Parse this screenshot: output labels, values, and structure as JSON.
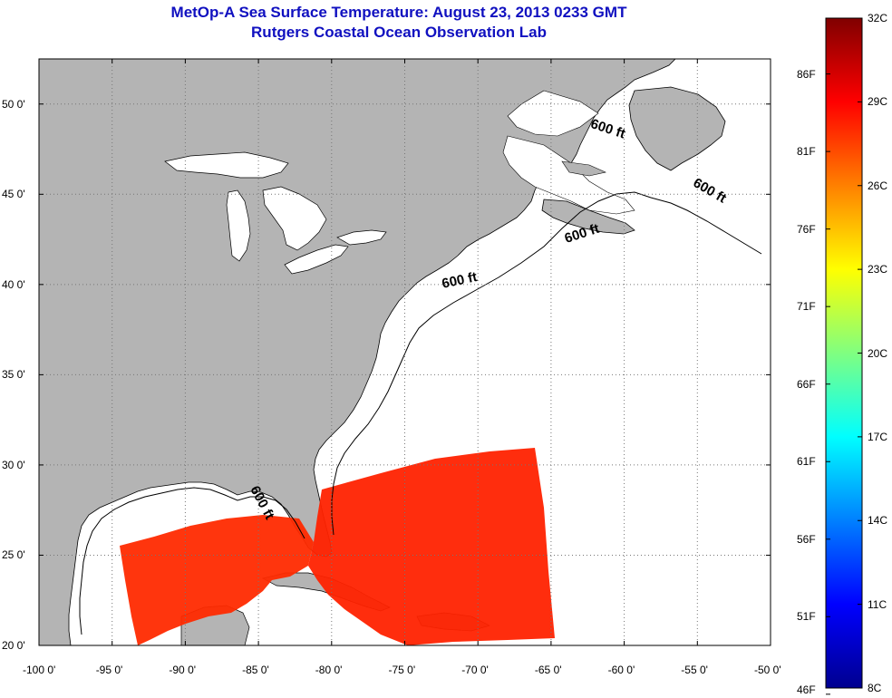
{
  "title": {
    "line1": "MetOp-A Sea Surface Temperature:  August 23, 2013 0233 GMT",
    "line2": "Rutgers Coastal Ocean Observation Lab"
  },
  "map": {
    "lon_range": [
      -100,
      -50
    ],
    "lat_range": [
      20,
      52.5
    ],
    "lon_ticks": [
      {
        "value": -100,
        "label": "-100 0'"
      },
      {
        "value": -95,
        "label": "-95 0'"
      },
      {
        "value": -90,
        "label": "-90 0'"
      },
      {
        "value": -85,
        "label": "-85 0'"
      },
      {
        "value": -80,
        "label": "-80 0'"
      },
      {
        "value": -75,
        "label": "-75 0'"
      },
      {
        "value": -70,
        "label": "-70 0'"
      },
      {
        "value": -65,
        "label": "-65 0'"
      },
      {
        "value": -60,
        "label": "-60 0'"
      },
      {
        "value": -55,
        "label": "-55 0'"
      },
      {
        "value": -50,
        "label": "-50 0'"
      }
    ],
    "lat_ticks": [
      {
        "value": 20,
        "label": "20 0'"
      },
      {
        "value": 25,
        "label": "25 0'"
      },
      {
        "value": 30,
        "label": "30 0'"
      },
      {
        "value": 35,
        "label": "35 0'"
      },
      {
        "value": 40,
        "label": "40 0'"
      },
      {
        "value": 45,
        "label": "45 0'"
      },
      {
        "value": 50,
        "label": "50 0'"
      }
    ],
    "grid": "dotted",
    "land_color": "#b4b4b4",
    "ocean_color": "#ffffff",
    "contour_labels": [
      {
        "text": "600 ft",
        "lon": -61.2,
        "lat": 48.4,
        "rot": 18
      },
      {
        "text": "600 ft",
        "lon": -54.3,
        "lat": 45.0,
        "rot": 30
      },
      {
        "text": "600 ft",
        "lon": -62.8,
        "lat": 42.6,
        "rot": -18
      },
      {
        "text": "600 ft",
        "lon": -71.2,
        "lat": 40.0,
        "rot": -12
      },
      {
        "text": "600 ft",
        "lon": -85.0,
        "lat": 27.8,
        "rot": 62
      }
    ],
    "sst_swath_description_colors": [
      "#ff2a00",
      "#e00000",
      "#ff7a00"
    ]
  },
  "colorbar": {
    "left_labels": [
      {
        "value": 86,
        "label": "86F"
      },
      {
        "value": 81,
        "label": "81F"
      },
      {
        "value": 76,
        "label": "76F"
      },
      {
        "value": 71,
        "label": "71F"
      },
      {
        "value": 66,
        "label": "66F"
      },
      {
        "value": 61,
        "label": "61F"
      },
      {
        "value": 56,
        "label": "56F"
      },
      {
        "value": 51,
        "label": "51F"
      },
      {
        "value": 46,
        "label": "46F"
      }
    ],
    "right_labels": [
      {
        "value": 32,
        "label": "32C"
      },
      {
        "value": 29,
        "label": "29C"
      },
      {
        "value": 26,
        "label": "26C"
      },
      {
        "value": 23,
        "label": "23C"
      },
      {
        "value": 20,
        "label": "20C"
      },
      {
        "value": 17,
        "label": "17C"
      },
      {
        "value": 14,
        "label": "14C"
      },
      {
        "value": 11,
        "label": "11C"
      },
      {
        "value": 8,
        "label": "8C"
      }
    ],
    "range_c": [
      8,
      32
    ],
    "colormap": [
      "#00008f",
      "#0000ff",
      "#0080ff",
      "#00ffff",
      "#80ff80",
      "#ffff00",
      "#ff8000",
      "#ff0000",
      "#800000"
    ]
  }
}
